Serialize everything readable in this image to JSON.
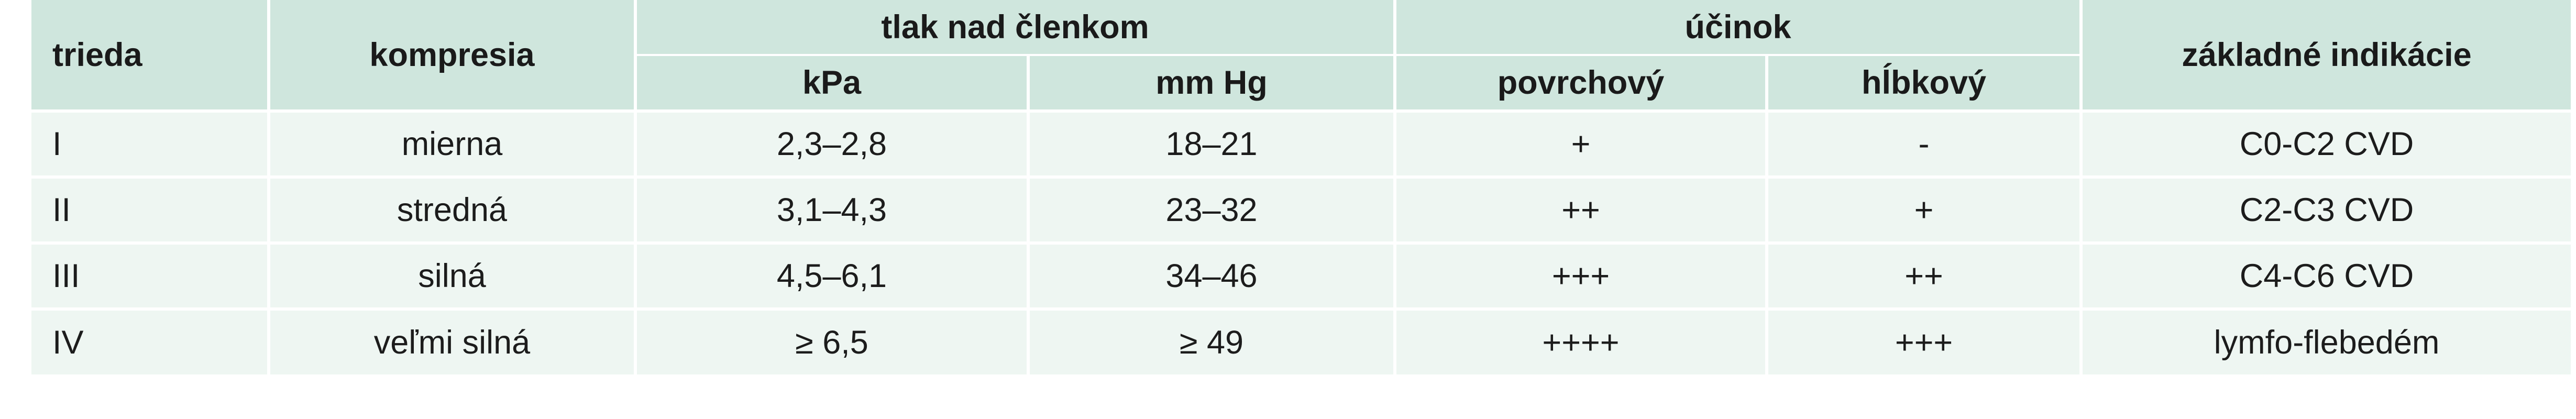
{
  "headers": {
    "trieda": "trieda",
    "kompresia": "kompresia",
    "tlak_group": "tlak nad členkom",
    "kpa": "kPa",
    "mmhg": "mm Hg",
    "ucinok_group": "účinok",
    "povrchovy": "povrchový",
    "hlbkovy": "hĺbkový",
    "indikacie": "základné indikácie"
  },
  "rows": [
    {
      "trieda": "I",
      "kompresia": "mierna",
      "kpa": "2,3–2,8",
      "mmhg": "18–21",
      "povrchovy": "+",
      "hlbkovy": "-",
      "indikacie": "C0-C2 CVD"
    },
    {
      "trieda": "II",
      "kompresia": "stredná",
      "kpa": "3,1–4,3",
      "mmhg": "23–32",
      "povrchovy": "++",
      "hlbkovy": "+",
      "indikacie": "C2-C3 CVD"
    },
    {
      "trieda": "III",
      "kompresia": "silná",
      "kpa": "4,5–6,1",
      "mmhg": "34–46",
      "povrchovy": "+++",
      "hlbkovy": "++",
      "indikacie": "C4-C6 CVD"
    },
    {
      "trieda": "IV",
      "kompresia": "veľmi silná",
      "kpa": "≥ 6,5",
      "mmhg": "≥ 49",
      "povrchovy": "++++",
      "hlbkovy": "+++",
      "indikacie": "lymfo-flebedém"
    }
  ],
  "colors": {
    "header_bg": "#cfe6dd",
    "row_bg": "#eef6f2",
    "separator": "#ffffff"
  }
}
